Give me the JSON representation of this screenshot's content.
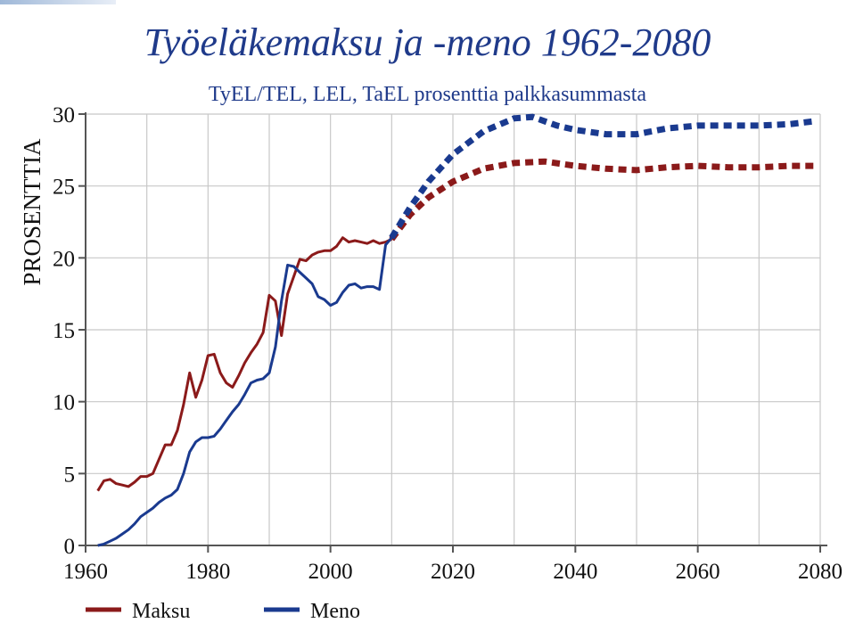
{
  "colors": {
    "maksu": "#8b1a1a",
    "meno": "#1a3a8f",
    "title": "#1f3a8a"
  },
  "chart_data": {
    "type": "line",
    "title": "Työeläkemaksu ja -meno 1962-2080",
    "subtitle": "TyEL/TEL, LEL, TaEL prosenttia palkkasummasta",
    "ylabel": "PROSENTTIA",
    "xlim": [
      1960,
      2080
    ],
    "ylim": [
      0,
      30
    ],
    "x_ticks": [
      "1960",
      "1980",
      "2000",
      "2020",
      "2040",
      "2060",
      "2080"
    ],
    "y_ticks": [
      "0",
      "5",
      "10",
      "15",
      "20",
      "25",
      "30"
    ],
    "grid": true,
    "legend_position": "bottom-left",
    "series": [
      {
        "name": "Maksu",
        "historical": [
          [
            1962,
            3.8
          ],
          [
            1963,
            4.5
          ],
          [
            1964,
            4.6
          ],
          [
            1965,
            4.3
          ],
          [
            1966,
            4.2
          ],
          [
            1967,
            4.1
          ],
          [
            1968,
            4.4
          ],
          [
            1969,
            4.8
          ],
          [
            1970,
            4.8
          ],
          [
            1971,
            5.0
          ],
          [
            1972,
            6.0
          ],
          [
            1973,
            7.0
          ],
          [
            1974,
            7.0
          ],
          [
            1975,
            8.0
          ],
          [
            1976,
            9.8
          ],
          [
            1977,
            12.0
          ],
          [
            1978,
            10.3
          ],
          [
            1979,
            11.5
          ],
          [
            1980,
            13.2
          ],
          [
            1981,
            13.3
          ],
          [
            1982,
            12.0
          ],
          [
            1983,
            11.3
          ],
          [
            1984,
            11.0
          ],
          [
            1985,
            11.8
          ],
          [
            1986,
            12.7
          ],
          [
            1987,
            13.4
          ],
          [
            1988,
            14.0
          ],
          [
            1989,
            14.8
          ],
          [
            1990,
            17.4
          ],
          [
            1991,
            17.0
          ],
          [
            1992,
            14.6
          ],
          [
            1993,
            17.5
          ],
          [
            1994,
            18.7
          ],
          [
            1995,
            19.9
          ],
          [
            1996,
            19.8
          ],
          [
            1997,
            20.2
          ],
          [
            1998,
            20.4
          ],
          [
            1999,
            20.5
          ],
          [
            2000,
            20.5
          ],
          [
            2001,
            20.8
          ],
          [
            2002,
            21.4
          ],
          [
            2003,
            21.1
          ],
          [
            2004,
            21.2
          ],
          [
            2005,
            21.1
          ],
          [
            2006,
            21.0
          ],
          [
            2007,
            21.2
          ],
          [
            2008,
            21.0
          ],
          [
            2009,
            21.1
          ],
          [
            2010,
            21.3
          ]
        ],
        "projection": [
          [
            2010,
            21.3
          ],
          [
            2013,
            23.0
          ],
          [
            2016,
            24.2
          ],
          [
            2020,
            25.3
          ],
          [
            2025,
            26.2
          ],
          [
            2030,
            26.6
          ],
          [
            2035,
            26.7
          ],
          [
            2040,
            26.4
          ],
          [
            2045,
            26.2
          ],
          [
            2050,
            26.1
          ],
          [
            2055,
            26.3
          ],
          [
            2060,
            26.4
          ],
          [
            2065,
            26.3
          ],
          [
            2070,
            26.3
          ],
          [
            2075,
            26.4
          ],
          [
            2079,
            26.4
          ]
        ]
      },
      {
        "name": "Meno",
        "historical": [
          [
            1962,
            0.0
          ],
          [
            1963,
            0.1
          ],
          [
            1964,
            0.3
          ],
          [
            1965,
            0.5
          ],
          [
            1966,
            0.8
          ],
          [
            1967,
            1.1
          ],
          [
            1968,
            1.5
          ],
          [
            1969,
            2.0
          ],
          [
            1970,
            2.3
          ],
          [
            1971,
            2.6
          ],
          [
            1972,
            3.0
          ],
          [
            1973,
            3.3
          ],
          [
            1974,
            3.5
          ],
          [
            1975,
            3.9
          ],
          [
            1976,
            5.0
          ],
          [
            1977,
            6.5
          ],
          [
            1978,
            7.2
          ],
          [
            1979,
            7.5
          ],
          [
            1980,
            7.5
          ],
          [
            1981,
            7.6
          ],
          [
            1982,
            8.1
          ],
          [
            1983,
            8.7
          ],
          [
            1984,
            9.3
          ],
          [
            1985,
            9.8
          ],
          [
            1986,
            10.5
          ],
          [
            1987,
            11.3
          ],
          [
            1988,
            11.5
          ],
          [
            1989,
            11.6
          ],
          [
            1990,
            12.0
          ],
          [
            1991,
            13.8
          ],
          [
            1992,
            17.0
          ],
          [
            1993,
            19.5
          ],
          [
            1994,
            19.4
          ],
          [
            1995,
            19.0
          ],
          [
            1996,
            18.6
          ],
          [
            1997,
            18.2
          ],
          [
            1998,
            17.3
          ],
          [
            1999,
            17.1
          ],
          [
            2000,
            16.7
          ],
          [
            2001,
            16.9
          ],
          [
            2002,
            17.6
          ],
          [
            2003,
            18.1
          ],
          [
            2004,
            18.2
          ],
          [
            2005,
            17.9
          ],
          [
            2006,
            18.0
          ],
          [
            2007,
            18.0
          ],
          [
            2008,
            17.8
          ],
          [
            2009,
            20.9
          ],
          [
            2010,
            21.4
          ]
        ],
        "projection": [
          [
            2010,
            21.4
          ],
          [
            2013,
            23.5
          ],
          [
            2016,
            25.3
          ],
          [
            2020,
            27.2
          ],
          [
            2025,
            28.8
          ],
          [
            2030,
            29.7
          ],
          [
            2033,
            29.8
          ],
          [
            2037,
            29.2
          ],
          [
            2040,
            28.9
          ],
          [
            2045,
            28.6
          ],
          [
            2050,
            28.6
          ],
          [
            2055,
            29.0
          ],
          [
            2060,
            29.2
          ],
          [
            2065,
            29.2
          ],
          [
            2070,
            29.2
          ],
          [
            2075,
            29.3
          ],
          [
            2079,
            29.5
          ]
        ]
      }
    ]
  }
}
